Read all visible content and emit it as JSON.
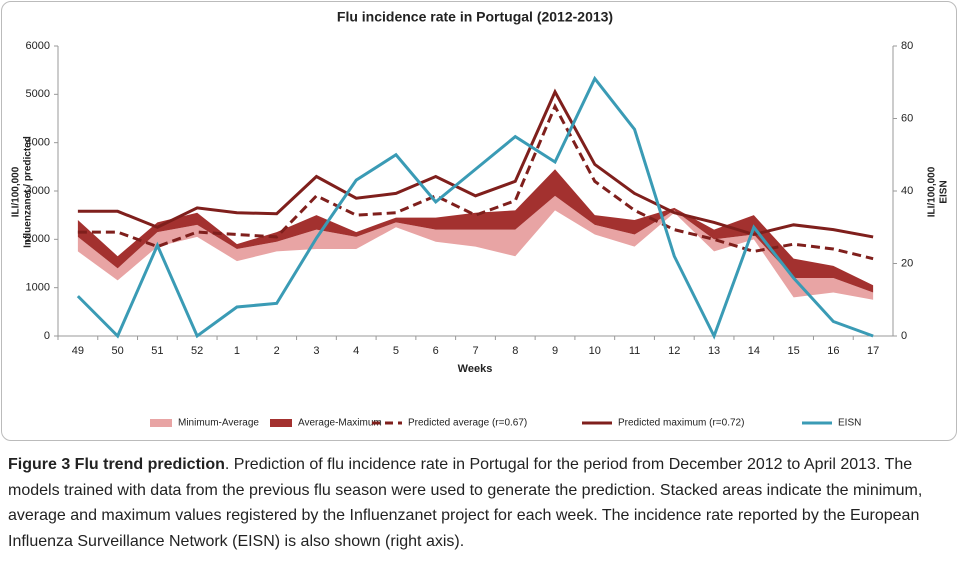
{
  "chart_data": {
    "type": "line",
    "title": "Flu incidence rate in Portugal (2012-2013)",
    "y_label": [
      "ILI/100,000",
      "Influenzanet / predicted"
    ],
    "y2_label": [
      "ILI/100,000",
      "EISN"
    ],
    "x_label": "Weeks",
    "categories": [
      "49",
      "50",
      "51",
      "52",
      "1",
      "2",
      "3",
      "4",
      "5",
      "6",
      "7",
      "8",
      "9",
      "10",
      "11",
      "12",
      "13",
      "14",
      "15",
      "16",
      "17"
    ],
    "ylim": [
      0,
      6000
    ],
    "yticks": [
      0,
      1000,
      2000,
      3000,
      4000,
      5000,
      6000
    ],
    "y2lim": [
      0,
      80
    ],
    "y2ticks": [
      0,
      20,
      40,
      60,
      80
    ],
    "series": [
      {
        "kind": "area",
        "color": "none",
        "values": [
          1750,
          1150,
          1850,
          2050,
          1550,
          1750,
          1800,
          1800,
          2250,
          1950,
          1850,
          1650,
          2600,
          2100,
          1850,
          2550,
          1750,
          2000,
          800,
          900,
          750
        ]
      },
      {
        "name": "Minimum-Average",
        "kind": "area",
        "color": "#e8a4a4",
        "values": [
          300,
          250,
          300,
          250,
          250,
          200,
          400,
          250,
          100,
          250,
          350,
          550,
          300,
          200,
          250,
          50,
          250,
          100,
          400,
          300,
          150
        ]
      },
      {
        "name": "Average-Maximum",
        "kind": "area",
        "color": "#a3312f",
        "values": [
          350,
          250,
          200,
          250,
          100,
          200,
          300,
          100,
          100,
          250,
          350,
          400,
          550,
          200,
          300,
          50,
          200,
          400,
          400,
          250,
          150
        ]
      },
      {
        "name": "Predicted average (r=0.67)",
        "kind": "line",
        "dash": true,
        "color": "#7f1f1c",
        "values": [
          2150,
          2150,
          1850,
          2150,
          2100,
          2050,
          2900,
          2500,
          2550,
          2900,
          2500,
          2800,
          4750,
          3200,
          2600,
          2200,
          2000,
          1750,
          1900,
          1800,
          1600
        ]
      },
      {
        "name": "Predicted maximum (r=0.72)",
        "kind": "line",
        "color": "#7f1f1c",
        "values": [
          2580,
          2580,
          2250,
          2650,
          2550,
          2530,
          3300,
          2850,
          2950,
          3300,
          2900,
          3200,
          5050,
          3550,
          2950,
          2550,
          2350,
          2100,
          2300,
          2200,
          2050
        ]
      },
      {
        "name": "EISN",
        "kind": "line",
        "axis": "y2",
        "color": "#3a9bb5",
        "values": [
          11,
          0,
          25,
          0,
          8,
          9,
          27,
          43,
          50,
          37,
          46,
          55,
          48,
          71,
          57,
          22,
          0,
          30,
          16,
          4,
          0
        ]
      }
    ]
  },
  "caption": {
    "label": "Figure 3 Flu trend prediction",
    "text": ". Prediction of flu incidence rate in Portugal for the period from December 2012 to April 2013. The models trained with data from the previous flu season were used to generate the prediction. Stacked areas indicate the minimum, average and maximum values registered by the Influenzanet project for each week. The incidence rate reported by the European Influenza Surveillance Network (EISN) is also shown (right axis)."
  }
}
